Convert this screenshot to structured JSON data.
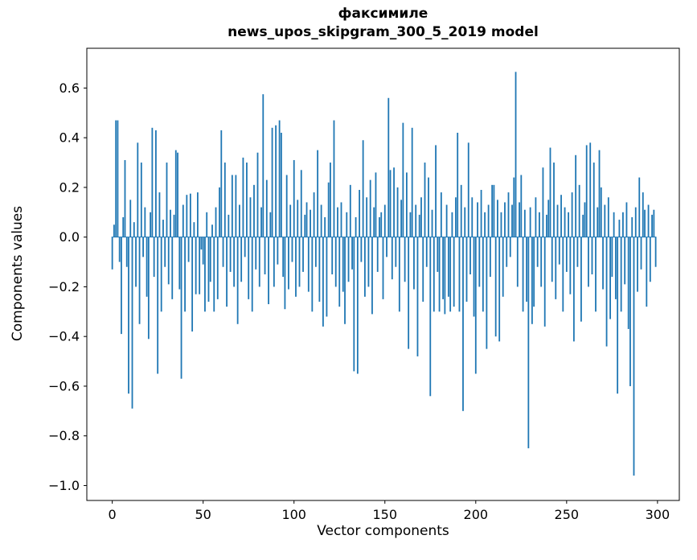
{
  "figure": {
    "title_line1": "факсимиле",
    "title_line2": "news_upos_skipgram_300_5_2019 model"
  },
  "chart_data": {
    "type": "bar",
    "title": "факсимиле\nnews_upos_skipgram_300_5_2019 model",
    "xlabel": "Vector components",
    "ylabel": "Components values",
    "bar_color": "#1f77b4",
    "grid": false,
    "legend": null,
    "x_ticks": [
      0,
      50,
      100,
      150,
      200,
      250,
      300
    ],
    "y_ticks": [
      -1.0,
      -0.8,
      -0.6,
      -0.4,
      -0.2,
      0.0,
      0.2,
      0.4,
      0.6
    ],
    "y_tick_labels": [
      "−1.0",
      "−0.8",
      "−0.6",
      "−0.4",
      "−0.2",
      "0.0",
      "0.2",
      "0.4",
      "0.6"
    ],
    "xlim": [
      -14,
      312
    ],
    "ylim": [
      -1.06,
      0.76
    ],
    "x_start": 0,
    "values": [
      -0.13,
      0.05,
      0.47,
      0.47,
      -0.1,
      -0.39,
      0.08,
      0.31,
      -0.12,
      -0.63,
      0.15,
      -0.69,
      0.06,
      -0.2,
      0.38,
      -0.35,
      0.3,
      -0.08,
      0.12,
      -0.24,
      -0.41,
      0.1,
      0.44,
      -0.16,
      0.43,
      -0.55,
      0.18,
      -0.3,
      0.07,
      -0.12,
      0.3,
      -0.19,
      0.11,
      -0.25,
      0.09,
      0.35,
      0.34,
      -0.21,
      -0.57,
      0.13,
      -0.3,
      0.17,
      -0.1,
      0.175,
      -0.38,
      0.06,
      -0.23,
      0.18,
      -0.23,
      -0.05,
      -0.11,
      -0.3,
      0.1,
      -0.26,
      -0.18,
      0.05,
      -0.3,
      0.12,
      -0.25,
      0.2,
      0.43,
      -0.12,
      0.3,
      -0.28,
      0.09,
      -0.14,
      0.25,
      -0.2,
      0.25,
      -0.35,
      0.13,
      -0.18,
      0.32,
      -0.08,
      0.3,
      -0.25,
      0.16,
      -0.3,
      0.21,
      -0.13,
      0.34,
      -0.2,
      0.12,
      0.575,
      -0.15,
      0.23,
      -0.27,
      0.1,
      0.44,
      -0.2,
      0.45,
      -0.11,
      0.47,
      0.42,
      -0.16,
      -0.29,
      0.25,
      -0.21,
      0.13,
      -0.1,
      0.31,
      -0.24,
      0.15,
      -0.2,
      0.27,
      -0.14,
      0.09,
      0.14,
      -0.22,
      0.11,
      -0.3,
      0.18,
      -0.12,
      0.35,
      -0.26,
      0.13,
      -0.36,
      0.08,
      -0.32,
      0.22,
      0.3,
      -0.15,
      0.47,
      -0.2,
      0.12,
      -0.28,
      0.14,
      -0.22,
      -0.35,
      0.1,
      -0.18,
      0.21,
      -0.13,
      -0.54,
      0.08,
      -0.55,
      0.19,
      -0.1,
      0.39,
      -0.24,
      0.16,
      -0.2,
      0.23,
      -0.31,
      0.12,
      0.26,
      -0.14,
      0.08,
      0.1,
      -0.25,
      0.13,
      -0.08,
      0.56,
      0.27,
      -0.17,
      0.28,
      -0.12,
      0.2,
      -0.3,
      0.15,
      0.46,
      -0.18,
      0.26,
      -0.45,
      0.1,
      0.44,
      -0.21,
      0.13,
      -0.48,
      0.09,
      0.16,
      -0.26,
      0.3,
      -0.12,
      0.24,
      -0.64,
      0.11,
      -0.3,
      0.37,
      -0.14,
      -0.3,
      0.18,
      -0.25,
      -0.31,
      0.13,
      -0.24,
      -0.3,
      0.1,
      -0.28,
      0.16,
      0.42,
      -0.3,
      0.21,
      -0.7,
      0.12,
      -0.26,
      0.38,
      -0.15,
      0.16,
      -0.32,
      -0.55,
      0.14,
      -0.2,
      0.19,
      -0.3,
      0.1,
      -0.45,
      0.13,
      -0.16,
      0.21,
      0.21,
      -0.4,
      0.15,
      -0.42,
      0.1,
      -0.24,
      0.14,
      -0.12,
      0.18,
      -0.08,
      0.13,
      0.24,
      0.665,
      -0.2,
      0.14,
      0.25,
      -0.3,
      0.11,
      -0.26,
      -0.85,
      0.12,
      -0.35,
      -0.28,
      0.16,
      -0.12,
      0.1,
      -0.2,
      0.28,
      -0.36,
      0.09,
      0.15,
      0.36,
      -0.18,
      0.3,
      -0.25,
      0.13,
      -0.11,
      0.17,
      -0.3,
      0.12,
      -0.14,
      0.1,
      -0.23,
      0.18,
      -0.42,
      0.33,
      -0.12,
      0.21,
      -0.34,
      0.09,
      0.14,
      0.37,
      -0.2,
      0.38,
      -0.15,
      0.3,
      -0.3,
      0.12,
      0.35,
      0.2,
      -0.21,
      0.13,
      -0.44,
      0.16,
      -0.33,
      -0.16,
      0.1,
      -0.25,
      -0.63,
      0.07,
      -0.3,
      0.1,
      -0.19,
      0.14,
      -0.37,
      -0.6,
      0.08,
      -0.96,
      0.12,
      -0.22,
      0.24,
      -0.13,
      0.18,
      0.11,
      -0.28,
      0.13,
      -0.18,
      0.09,
      0.11,
      -0.12
    ]
  }
}
